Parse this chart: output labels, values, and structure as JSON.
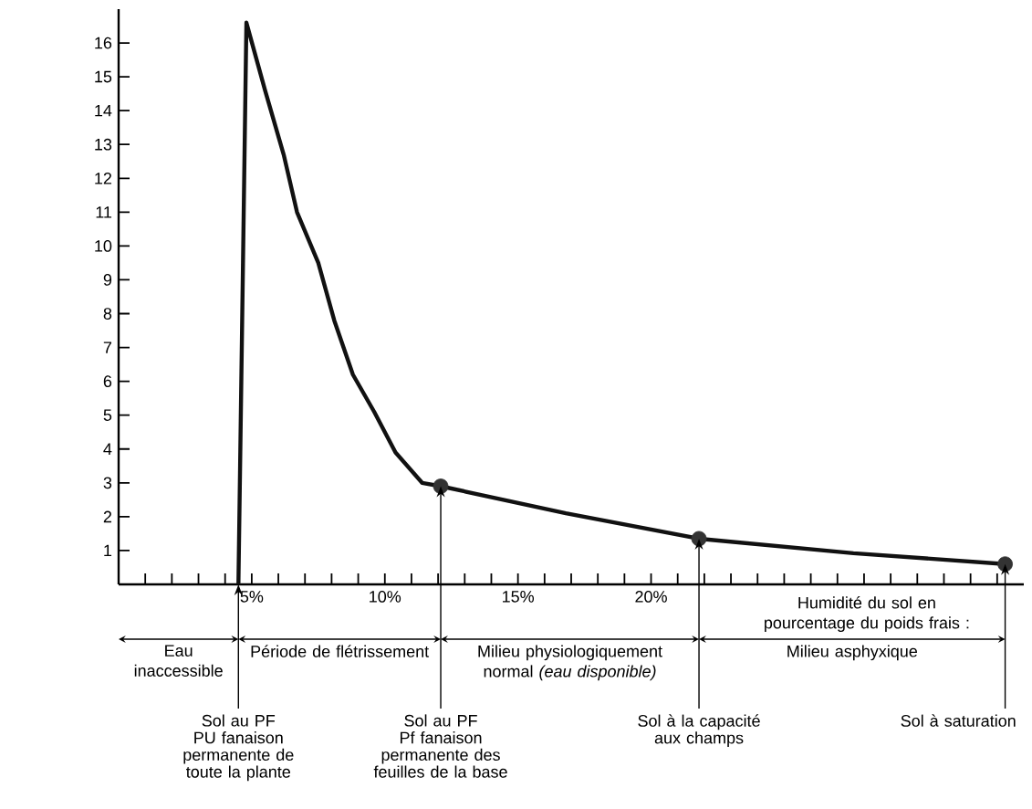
{
  "chart_data": {
    "type": "line",
    "xlabel": "Humidité du sol en pourcentage du poids frais :",
    "xlim": [
      0,
      34
    ],
    "ylim": [
      0,
      17
    ],
    "xticks": [
      {
        "value": 1,
        "label": null
      },
      {
        "value": 2,
        "label": null
      },
      {
        "value": 3,
        "label": null
      },
      {
        "value": 4,
        "label": null
      },
      {
        "value": 5,
        "label": "5%"
      },
      {
        "value": 6,
        "label": null
      },
      {
        "value": 7,
        "label": null
      },
      {
        "value": 8,
        "label": null
      },
      {
        "value": 9,
        "label": null
      },
      {
        "value": 10,
        "label": "10%"
      },
      {
        "value": 11,
        "label": null
      },
      {
        "value": 12,
        "label": null
      },
      {
        "value": 13,
        "label": null
      },
      {
        "value": 14,
        "label": null
      },
      {
        "value": 15,
        "label": "15%"
      },
      {
        "value": 16,
        "label": null
      },
      {
        "value": 17,
        "label": null
      },
      {
        "value": 18,
        "label": null
      },
      {
        "value": 19,
        "label": null
      },
      {
        "value": 20,
        "label": "20%"
      },
      {
        "value": 21,
        "label": null
      },
      {
        "value": 22,
        "label": null
      },
      {
        "value": 23,
        "label": null
      },
      {
        "value": 24,
        "label": null
      },
      {
        "value": 25,
        "label": null
      },
      {
        "value": 26,
        "label": null
      },
      {
        "value": 27,
        "label": null
      },
      {
        "value": 28,
        "label": null
      },
      {
        "value": 29,
        "label": null
      },
      {
        "value": 30,
        "label": null
      },
      {
        "value": 31,
        "label": null
      },
      {
        "value": 32,
        "label": null
      },
      {
        "value": 33,
        "label": null
      }
    ],
    "yticks": [
      1,
      2,
      3,
      4,
      5,
      6,
      7,
      8,
      9,
      10,
      11,
      12,
      13,
      14,
      15,
      16
    ],
    "series": [
      {
        "color": "#111111",
        "marker": "none",
        "x": [
          4.5,
          4.8,
          5.5,
          6.2,
          6.7,
          7.5,
          8.1,
          8.8,
          9.6,
          10.4,
          11.4,
          12.1,
          16.8,
          21.8,
          27.6,
          33.3
        ],
        "values": [
          0,
          16.6,
          14.6,
          12.7,
          11.0,
          9.5,
          7.8,
          6.2,
          5.1,
          3.9,
          3.0,
          2.9,
          2.1,
          1.35,
          0.92,
          0.6
        ]
      },
      {
        "type": "scatter",
        "color": "#333333",
        "marker": "circle",
        "x": [
          12.1,
          21.8,
          33.3
        ],
        "values": [
          2.9,
          1.35,
          0.6
        ]
      }
    ],
    "annotations": [
      "Eau inaccessible",
      "Période de flétrissement",
      "Milieu physiologiquement normal *(eau disponible)*",
      "Milieu asphyxique",
      {
        "text": "Sol au PF PU fanaison permanente de toute la plante",
        "x": 4.5,
        "y": 0
      },
      {
        "text": "Sol au PF Pf fanaison permanente des feuilles de la base",
        "x": 12.1,
        "y": 2.9
      },
      {
        "text": "Sol à la capacité aux champs",
        "x": 21.8,
        "y": 1.35
      },
      {
        "text": "Sol à saturation",
        "x": 33.3,
        "y": 0.6
      }
    ]
  }
}
